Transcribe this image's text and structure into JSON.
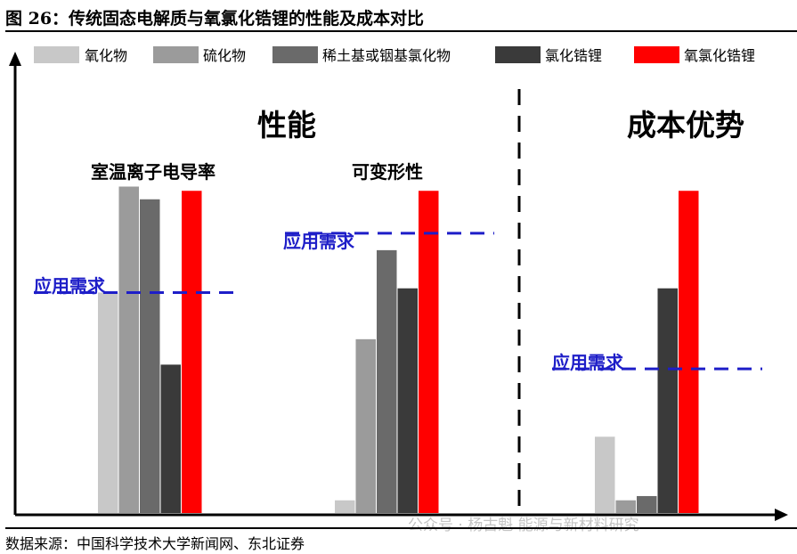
{
  "figure": {
    "title": "图 26：传统固态电解质与氧氯化锆锂的性能及成本对比",
    "source": "数据来源：中国科学技术大学新闻网、东北证券",
    "watermark": "公众号 · 杨古魁 能源与新材料研究"
  },
  "chart_data": {
    "type": "bar",
    "series": [
      {
        "name": "氧化物",
        "color": "#c8c8c8",
        "values": [
          0.52,
          0.03,
          0.18
        ]
      },
      {
        "name": "硫化物",
        "color": "#9b9b9b",
        "values": [
          0.77,
          0.41,
          0.03
        ]
      },
      {
        "name": "稀土基或铟基氯化物",
        "color": "#6a6a6a",
        "values": [
          0.74,
          0.62,
          0.04
        ]
      },
      {
        "name": "氯化锆锂",
        "color": "#3a3a3a",
        "values": [
          0.35,
          0.53,
          0.53
        ]
      },
      {
        "name": "氧氯化锆锂",
        "color": "#ff0000",
        "values": [
          0.76,
          0.76,
          0.76
        ]
      }
    ],
    "groups": [
      {
        "label": "室温离子电导率",
        "requirement": 0.52
      },
      {
        "label": "可变形性",
        "requirement": 0.66
      },
      {
        "label": "",
        "requirement": 0.34
      }
    ],
    "section_labels": [
      "性能",
      "成本优势"
    ],
    "requirement_label": "应用需求",
    "ylim": [
      0,
      1
    ],
    "legend_position": "top"
  }
}
